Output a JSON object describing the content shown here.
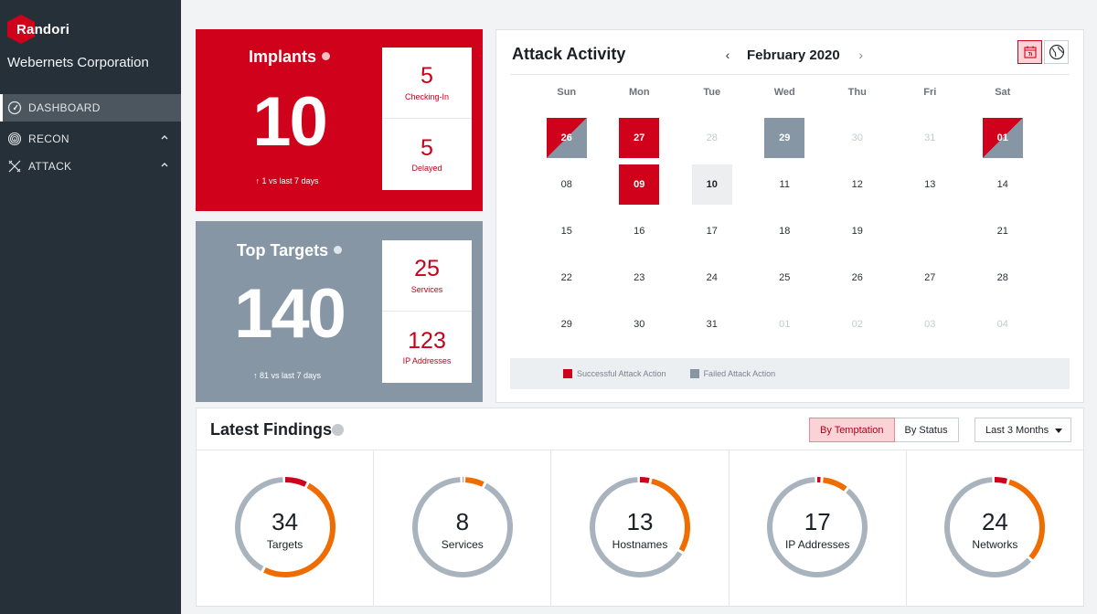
{
  "brand": {
    "logo_text": "Randori",
    "org_name": "Webernets Corporation",
    "accent": "#d0021b"
  },
  "sidebar": {
    "items": [
      {
        "label": "DASHBOARD",
        "icon": "gauge-icon",
        "active": true
      },
      {
        "label": "RECON",
        "icon": "fingerprint-icon",
        "expandable": true
      },
      {
        "label": "ATTACK",
        "icon": "crosshair-tools-icon",
        "expandable": true
      }
    ]
  },
  "implants": {
    "title": "Implants",
    "total": "10",
    "trend": "1 vs last 7 days",
    "checking_in": {
      "value": "5",
      "label": "Checking-In"
    },
    "delayed": {
      "value": "5",
      "label": "Delayed"
    }
  },
  "top_targets": {
    "title": "Top Targets",
    "total": "140",
    "trend": "81 vs last 7 days",
    "services": {
      "value": "25",
      "label": "Services"
    },
    "ip_addresses": {
      "value": "123",
      "label": "IP Addresses"
    }
  },
  "attack_activity": {
    "title": "Attack Activity",
    "month": "February 2020",
    "prev_arrow": "‹",
    "next_arrow": "›",
    "weekdays": [
      "Sun",
      "Mon",
      "Tue",
      "Wed",
      "Thu",
      "Fri",
      "Sat"
    ],
    "days": [
      {
        "d": "26",
        "state": "mix"
      },
      {
        "d": "27",
        "state": "succ"
      },
      {
        "d": "28",
        "state": "faded"
      },
      {
        "d": "29",
        "state": "fail"
      },
      {
        "d": "30",
        "state": "faded"
      },
      {
        "d": "31",
        "state": "faded"
      },
      {
        "d": "01",
        "state": "mix"
      },
      {
        "d": "08",
        "state": ""
      },
      {
        "d": "09",
        "state": "succ"
      },
      {
        "d": "10",
        "state": "today"
      },
      {
        "d": "11",
        "state": ""
      },
      {
        "d": "12",
        "state": ""
      },
      {
        "d": "13",
        "state": ""
      },
      {
        "d": "14",
        "state": ""
      },
      {
        "d": "15",
        "state": ""
      },
      {
        "d": "16",
        "state": ""
      },
      {
        "d": "17",
        "state": ""
      },
      {
        "d": "18",
        "state": ""
      },
      {
        "d": "19",
        "state": ""
      },
      {
        "d": "",
        "state": ""
      },
      {
        "d": "21",
        "state": ""
      },
      {
        "d": "22",
        "state": ""
      },
      {
        "d": "23",
        "state": ""
      },
      {
        "d": "24",
        "state": ""
      },
      {
        "d": "25",
        "state": ""
      },
      {
        "d": "26",
        "state": ""
      },
      {
        "d": "27",
        "state": ""
      },
      {
        "d": "28",
        "state": ""
      },
      {
        "d": "29",
        "state": ""
      },
      {
        "d": "30",
        "state": ""
      },
      {
        "d": "31",
        "state": ""
      },
      {
        "d": "01",
        "state": "faded"
      },
      {
        "d": "02",
        "state": "faded"
      },
      {
        "d": "03",
        "state": "faded"
      },
      {
        "d": "04",
        "state": "faded"
      }
    ],
    "legend": {
      "success": {
        "label": "Successful Attack Action",
        "color": "#d0021b"
      },
      "failed": {
        "label": "Failed Attack Action",
        "color": "#8796a4"
      }
    }
  },
  "findings": {
    "title": "Latest Findings",
    "toggle": [
      "By Temptation",
      "By Status"
    ],
    "toggle_active": "By Temptation",
    "range": "Last 3 Months",
    "rings": [
      {
        "value": "34",
        "label": "Targets",
        "red": 0.08,
        "orange": 0.5
      },
      {
        "value": "8",
        "label": "Services",
        "red": 0.01,
        "orange": 0.07
      },
      {
        "value": "13",
        "label": "Hostnames",
        "red": 0.04,
        "orange": 0.3
      },
      {
        "value": "17",
        "label": "IP Addresses",
        "red": 0.02,
        "orange": 0.09
      },
      {
        "value": "24",
        "label": "Networks",
        "red": 0.05,
        "orange": 0.32
      }
    ],
    "colors": {
      "red": "#d0021b",
      "orange": "#ef6c00",
      "grey": "#a9b3bd"
    }
  }
}
